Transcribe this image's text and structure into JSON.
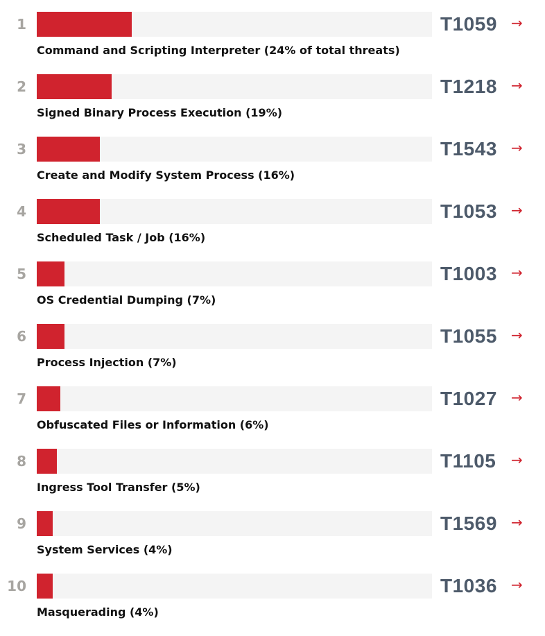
{
  "chart_data": {
    "type": "bar",
    "orientation": "horizontal",
    "xlim": [
      0,
      100
    ],
    "accent_color": "#d0232e",
    "track_color": "#f4f4f4",
    "code_color": "#4d5a6a",
    "rank_color": "#a7a5a1",
    "items": [
      {
        "rank": "1",
        "label": "Command and Scripting Interpreter (24% of total threats)",
        "value": 24,
        "code": "T1059"
      },
      {
        "rank": "2",
        "label": "Signed Binary Process Execution (19%)",
        "value": 19,
        "code": "T1218"
      },
      {
        "rank": "3",
        "label": "Create and Modify System Process (16%)",
        "value": 16,
        "code": "T1543"
      },
      {
        "rank": "4",
        "label": "Scheduled Task / Job (16%)",
        "value": 16,
        "code": "T1053"
      },
      {
        "rank": "5",
        "label": "OS Credential Dumping (7%)",
        "value": 7,
        "code": "T1003"
      },
      {
        "rank": "6",
        "label": "Process Injection (7%)",
        "value": 7,
        "code": "T1055"
      },
      {
        "rank": "7",
        "label": "Obfuscated Files or Information (6%)",
        "value": 6,
        "code": "T1027"
      },
      {
        "rank": "8",
        "label": "Ingress Tool Transfer (5%)",
        "value": 5,
        "code": "T1105"
      },
      {
        "rank": "9",
        "label": "System Services (4%)",
        "value": 4,
        "code": "T1569"
      },
      {
        "rank": "10",
        "label": "Masquerading (4%)",
        "value": 4,
        "code": "T1036"
      }
    ]
  },
  "icons": {
    "arrow": "→",
    "arrow_icon_name": "arrow-right-icon"
  }
}
